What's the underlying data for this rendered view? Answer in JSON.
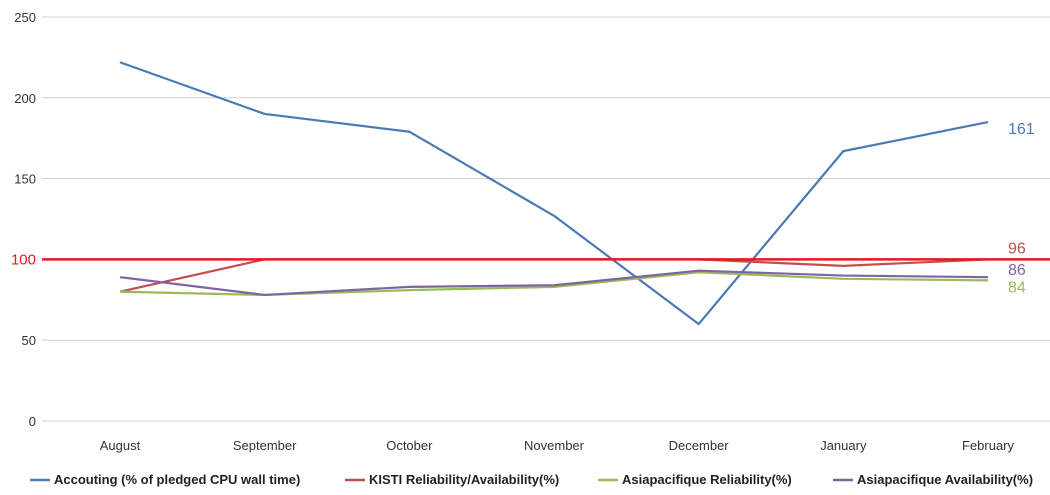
{
  "chart_data": {
    "type": "line",
    "title": "",
    "xlabel": "",
    "ylabel": "",
    "ylim": [
      0,
      250
    ],
    "yticks": [
      0,
      50,
      100,
      150,
      200,
      250
    ],
    "grid": "horizontal",
    "legend_position": "bottom",
    "categories": [
      "August",
      "September",
      "October",
      "November",
      "December",
      "January",
      "February"
    ],
    "reference_line": {
      "value": 100,
      "label": "100",
      "color": "#e41a1c"
    },
    "series": [
      {
        "name": "Accouting (% of pledged CPU  wall time)",
        "color": "#4a7ab5",
        "values": [
          222,
          190,
          179,
          127,
          60,
          167,
          185
        ],
        "end_label": "161"
      },
      {
        "name": "KISTI Reliability/Availability(%)",
        "color": "#c0504d",
        "values": [
          80,
          100,
          100,
          100,
          100,
          96,
          100
        ],
        "end_label": "96"
      },
      {
        "name": "Asiapacifique  Reliability(%)",
        "color": "#9bbb59",
        "values": [
          80,
          78,
          81,
          83,
          92,
          88,
          87
        ],
        "end_label": "84"
      },
      {
        "name": "Asiapacifique  Availability(%)",
        "color": "#8064a2",
        "values": [
          89,
          78,
          83,
          84,
          93,
          90,
          89
        ],
        "end_label": "86"
      }
    ]
  }
}
